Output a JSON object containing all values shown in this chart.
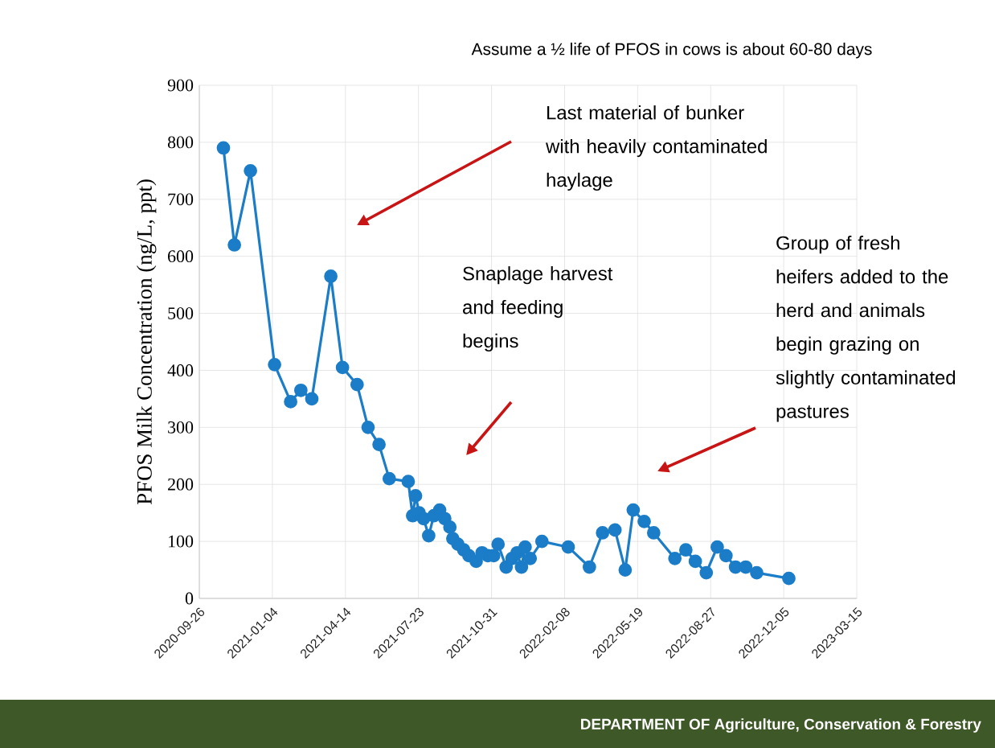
{
  "chart_data": {
    "type": "line",
    "ylabel": "PFOS Milk Concentration (ng/L, ppt)",
    "annotations": [
      "Assume a ½ life of PFOS in cows is about 60-80 days",
      "Last material of bunker with heavily contaminated haylage",
      "Snaplage harvest and feeding begins",
      "Group of fresh heifers added to the herd and animals begin grazing on slightly contaminated pastures",
      "DEPARTMENT OF Agriculture, Conservation & Forestry"
    ],
    "x": [
      "2020-10-29",
      "2020-11-13",
      "2020-12-05",
      "2021-01-07",
      "2021-01-29",
      "2021-02-12",
      "2021-02-27",
      "2021-03-25",
      "2021-04-10",
      "2021-04-30",
      "2021-05-15",
      "2021-05-30",
      "2021-06-13",
      "2021-07-09",
      "2021-07-15",
      "2021-07-19",
      "2021-07-24",
      "2021-07-30",
      "2021-08-06",
      "2021-08-13",
      "2021-08-21",
      "2021-08-28",
      "2021-09-04",
      "2021-09-08",
      "2021-09-15",
      "2021-09-23",
      "2021-09-30",
      "2021-10-10",
      "2021-10-18",
      "2021-10-26",
      "2021-11-03",
      "2021-11-09",
      "2021-11-20",
      "2021-11-28",
      "2021-12-05",
      "2021-12-11",
      "2021-12-16",
      "2021-12-23",
      "2022-01-08",
      "2022-02-13",
      "2022-03-14",
      "2022-04-01",
      "2022-04-18",
      "2022-05-02",
      "2022-05-13",
      "2022-05-28",
      "2022-06-10",
      "2022-07-09",
      "2022-07-24",
      "2022-08-06",
      "2022-08-21",
      "2022-09-05",
      "2022-09-17",
      "2022-09-30",
      "2022-10-14",
      "2022-10-29",
      "2022-12-12"
    ],
    "series": [
      {
        "color": "#1b7cc8",
        "values": [
          790,
          620,
          750,
          410,
          345,
          365,
          350,
          565,
          405,
          375,
          300,
          270,
          210,
          205,
          145,
          180,
          150,
          140,
          110,
          145,
          155,
          140,
          125,
          105,
          95,
          85,
          75,
          65,
          80,
          75,
          75,
          95,
          55,
          70,
          80,
          55,
          90,
          70,
          100,
          90,
          55,
          115,
          120,
          50,
          155,
          135,
          115,
          70,
          85,
          65,
          45,
          90,
          75,
          55,
          55,
          45,
          35
        ]
      }
    ],
    "xlim": [
      "2020-09-26",
      "2023-03-15"
    ],
    "xticks": [
      "2020-09-26",
      "2021-01-04",
      "2021-04-14",
      "2021-07-23",
      "2021-10-31",
      "2022-02-08",
      "2022-05-19",
      "2022-08-27",
      "2022-12-05",
      "2023-03-15"
    ],
    "ylim": [
      0,
      900
    ],
    "yticks": [
      0,
      100,
      200,
      300,
      400,
      500,
      600,
      700,
      800,
      900
    ],
    "grid": true,
    "marker": "circle",
    "line_style": "solid"
  }
}
